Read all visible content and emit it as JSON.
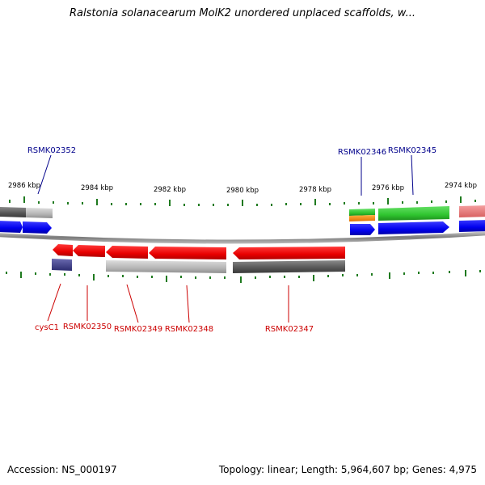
{
  "title": "Ralstonia solanacearum MolK2 unordered unplaced scaffolds, w...",
  "accession": "Accession: NS_000197",
  "topology": "Topology: linear; Length: 5,964,607 bp; Genes: 4,975",
  "colors": {
    "backbone": "#8a8a8a",
    "tick": "#1f7a1f",
    "blue_label": "#00008b",
    "red_label": "#cc0000",
    "red_feature": "#ee0000",
    "blue_feature": "#0000ee",
    "green_feature": "#33cc33",
    "orange_feature": "#ff8800",
    "grey_feature": "#777777",
    "light_grey_feature": "#bbbbbb",
    "pink_feature": "#ee7777",
    "navy_feature": "#444488"
  },
  "scale": {
    "unit": "kbp",
    "labels": [
      "2986 kbp",
      "2984 kbp",
      "2982 kbp",
      "2980 kbp",
      "2978 kbp",
      "2976 kbp",
      "2974 kbp"
    ]
  },
  "labels_top": [
    "RSMK02352",
    "RSMK02346",
    "RSMK02345"
  ],
  "labels_bottom": [
    "cysC1",
    "RSMK02350",
    "RSMK02349",
    "RSMK02348",
    "RSMK02347"
  ]
}
